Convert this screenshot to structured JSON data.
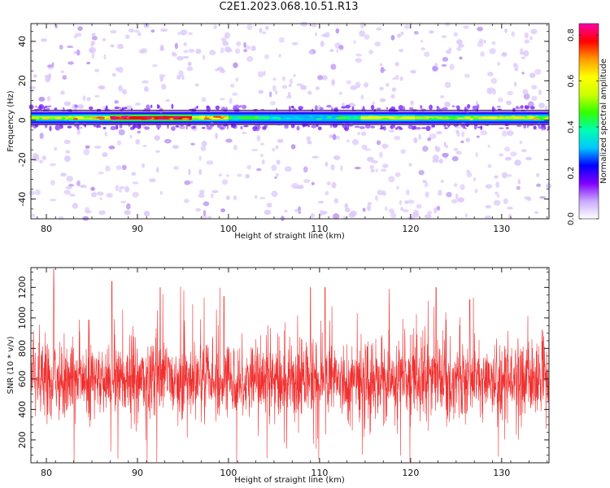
{
  "figure": {
    "title": "C2E1.2023.068.10.51.R13"
  },
  "chart_data": [
    {
      "type": "heatmap",
      "panel": "spectrogram",
      "xlabel": "Height of straight line (km)",
      "ylabel": "Frequency (Hz)",
      "xlim": [
        78.3,
        135.2
      ],
      "ylim": [
        -50,
        49
      ],
      "xticks": [
        "80",
        "90",
        "100",
        "110",
        "120",
        "130"
      ],
      "xtick_values": [
        80,
        90,
        100,
        110,
        120,
        130
      ],
      "yticks": [
        "-40",
        "-20",
        "0",
        "20",
        "40"
      ],
      "ytick_values": [
        -40,
        -20,
        0,
        20,
        40
      ],
      "band": {
        "frequency_center": 1.2,
        "frequency_halfwidth": 2.2,
        "segments": [
          {
            "x0": 78.3,
            "x1": 82.5,
            "level": 0.55
          },
          {
            "x0": 82.5,
            "x1": 87.0,
            "level": 0.62
          },
          {
            "x0": 87.0,
            "x1": 96.0,
            "level": 0.78
          },
          {
            "x0": 96.0,
            "x1": 100.0,
            "level": 0.62
          },
          {
            "x0": 100.0,
            "x1": 104.5,
            "level": 0.45
          },
          {
            "x0": 104.5,
            "x1": 112.0,
            "level": 0.32
          },
          {
            "x0": 112.0,
            "x1": 114.5,
            "level": 0.42
          },
          {
            "x0": 114.5,
            "x1": 120.5,
            "level": 0.58
          },
          {
            "x0": 120.5,
            "x1": 126.0,
            "level": 0.52
          },
          {
            "x0": 126.0,
            "x1": 135.2,
            "level": 0.55
          }
        ]
      },
      "background_level": 0.05,
      "colorbar": {
        "label": "Normalized spectral amplitude",
        "range": [
          0,
          0.85
        ],
        "ticks": [
          "0.0",
          "0.2",
          "0.4",
          "0.6",
          "0.8"
        ],
        "tick_values": [
          0,
          0.2,
          0.4,
          0.6,
          0.8
        ],
        "colors": [
          "#ffffff",
          "#c9a9ff",
          "#8000ff",
          "#0000ff",
          "#00c8ff",
          "#00ffb0",
          "#33ff00",
          "#ccff00",
          "#ffff00",
          "#ff9900",
          "#ff0000",
          "#ff00aa"
        ]
      }
    },
    {
      "type": "line",
      "panel": "snr",
      "xlabel": "Height of straight line (km)",
      "ylabel": "SNR (10 * v/v)",
      "xlim": [
        78.3,
        135.2
      ],
      "ylim": [
        50,
        1330
      ],
      "xticks": [
        "80",
        "90",
        "100",
        "110",
        "120",
        "130"
      ],
      "xtick_values": [
        80,
        90,
        100,
        110,
        120,
        130
      ],
      "yticks": [
        "200",
        "400",
        "600",
        "800",
        "1000",
        "1200"
      ],
      "ytick_values": [
        200,
        400,
        600,
        800,
        1000,
        1200
      ],
      "series": [
        {
          "color": "#f03030",
          "approx_mean": 590,
          "approx_spread": 160,
          "peaks": [
            {
              "x": 80.8,
              "y": 1320
            },
            {
              "x": 87.2,
              "y": 1240
            },
            {
              "x": 92.5,
              "y": 1200
            },
            {
              "x": 99.5,
              "y": 1140
            },
            {
              "x": 109.0,
              "y": 1200
            },
            {
              "x": 110.6,
              "y": 1200
            },
            {
              "x": 122.8,
              "y": 1200
            },
            {
              "x": 126.5,
              "y": 1120
            }
          ]
        }
      ]
    }
  ]
}
